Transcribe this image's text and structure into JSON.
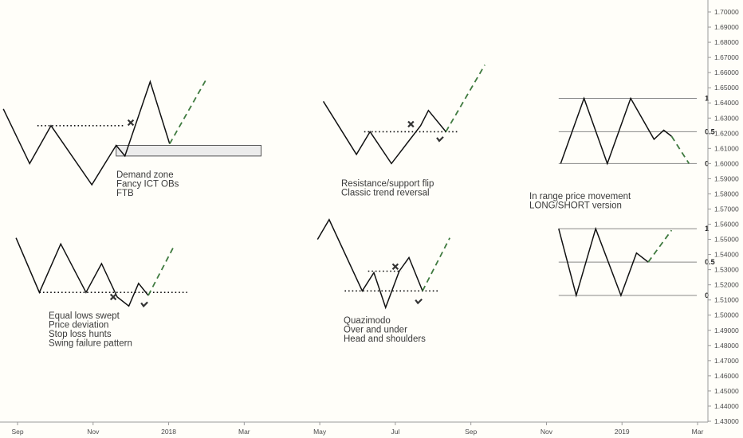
{
  "chart_data": {
    "type": "line",
    "colors": {
      "background": "#fffef9",
      "line": "#111111",
      "projection": "#3f7a3f",
      "level": "#888888",
      "zone_fill": "#ececec",
      "mark": "#333333"
    },
    "y_axis": {
      "range": [
        1.4275,
        1.7075
      ],
      "ticks": [
        "1.70000",
        "1.69000",
        "1.68000",
        "1.67000",
        "1.66000",
        "1.65000",
        "1.64000",
        "1.63000",
        "1.62000",
        "1.61000",
        "1.60000",
        "1.59000",
        "1.58000",
        "1.57000",
        "1.56000",
        "1.55000",
        "1.54000",
        "1.53000",
        "1.52000",
        "1.51000",
        "1.50000",
        "1.49000",
        "1.48000",
        "1.47000",
        "1.46000",
        "1.45000",
        "1.44000",
        "1.43000"
      ]
    },
    "x_axis": {
      "ticks": [
        "Sep",
        "Nov",
        "2018",
        "Mar",
        "May",
        "Jul",
        "Sep",
        "Nov",
        "2019",
        "Mar"
      ]
    },
    "patterns": [
      {
        "name": "demand-zone",
        "labels": [
          "Demand zone",
          "Fancy ICT OBs",
          "FTB"
        ],
        "path": [
          [
            0.05,
            1.636
          ],
          [
            1.4,
            1.6
          ],
          [
            2.5,
            1.625
          ],
          [
            4.6,
            1.586
          ],
          [
            5.85,
            1.612
          ],
          [
            6.3,
            1.605
          ],
          [
            7.6,
            1.654
          ],
          [
            8.6,
            1.613
          ]
        ],
        "projection": [
          [
            8.6,
            1.613
          ],
          [
            10.5,
            1.656
          ]
        ],
        "zone": [
          [
            5.85,
            1.605
          ],
          [
            13.3,
            1.612
          ]
        ],
        "dotted": {
          "x": [
            1.8,
            6.3
          ],
          "y": 1.625
        },
        "cross": [
          6.6,
          1.627
        ]
      },
      {
        "name": "sr-flip",
        "labels": [
          "Resistance/support flip",
          "Classic trend reversal"
        ],
        "path": [
          [
            16.5,
            1.641
          ],
          [
            18.2,
            1.606
          ],
          [
            18.9,
            1.621
          ],
          [
            20.0,
            1.6
          ],
          [
            21.5,
            1.625
          ],
          [
            21.9,
            1.635
          ],
          [
            22.8,
            1.621
          ]
        ],
        "projection": [
          [
            22.8,
            1.621
          ],
          [
            24.8,
            1.665
          ]
        ],
        "dotted": {
          "x": [
            18.6,
            23.4
          ],
          "y": 1.621
        },
        "cross": [
          21.0,
          1.626
        ],
        "check": [
          22.5,
          1.616
        ]
      },
      {
        "name": "range-top",
        "labels": [
          "In range price movement",
          "LONG/SHORT version"
        ],
        "path": [
          [
            28.7,
            1.6
          ],
          [
            29.9,
            1.643
          ],
          [
            31.1,
            1.6
          ],
          [
            32.3,
            1.643
          ],
          [
            33.5,
            1.616
          ],
          [
            34.0,
            1.622
          ],
          [
            34.4,
            1.618
          ]
        ],
        "projection": [
          [
            34.4,
            1.618
          ],
          [
            35.3,
            1.6
          ]
        ],
        "levels": [
          {
            "y": 1.643,
            "x": [
              28.6,
              35.7
            ],
            "label": "1"
          },
          {
            "y": 1.621,
            "x": [
              28.6,
              35.7
            ],
            "label": "0.5"
          },
          {
            "y": 1.6,
            "x": [
              28.6,
              35.7
            ],
            "label": "0"
          }
        ]
      },
      {
        "name": "equal-lows",
        "labels": [
          "Equal lows swept",
          "Price deviation",
          "Stop loss hunts",
          "Swing failure pattern"
        ],
        "path": [
          [
            0.7,
            1.551
          ],
          [
            1.9,
            1.515
          ],
          [
            3.0,
            1.547
          ],
          [
            4.3,
            1.515
          ],
          [
            5.1,
            1.534
          ],
          [
            5.9,
            1.512
          ],
          [
            6.5,
            1.506
          ],
          [
            7.0,
            1.521
          ],
          [
            7.5,
            1.513
          ]
        ],
        "projection": [
          [
            7.5,
            1.513
          ],
          [
            8.8,
            1.545
          ]
        ],
        "dotted": {
          "x": [
            1.9,
            9.5
          ],
          "y": 1.515
        },
        "cross": [
          5.7,
          1.512
        ],
        "check": [
          7.3,
          1.507
        ]
      },
      {
        "name": "quazimodo",
        "labels": [
          "Quazimodo",
          "Over and under",
          "Head and shoulders"
        ],
        "path": [
          [
            16.2,
            1.55
          ],
          [
            16.8,
            1.563
          ],
          [
            18.5,
            1.516
          ],
          [
            19.1,
            1.528
          ],
          [
            19.7,
            1.505
          ],
          [
            20.4,
            1.529
          ],
          [
            20.9,
            1.538
          ],
          [
            21.6,
            1.516
          ]
        ],
        "projection": [
          [
            21.6,
            1.516
          ],
          [
            23.0,
            1.551
          ]
        ],
        "dotted": [
          {
            "x": [
              18.8,
              20.5
            ],
            "y": 1.529
          },
          {
            "x": [
              17.6,
              22.5
            ],
            "y": 1.516
          }
        ],
        "cross": [
          20.2,
          1.532
        ],
        "check": [
          21.4,
          1.509
        ]
      },
      {
        "name": "range-bottom",
        "labels": [],
        "path": [
          [
            28.6,
            1.557
          ],
          [
            29.5,
            1.513
          ],
          [
            30.5,
            1.557
          ],
          [
            31.8,
            1.513
          ],
          [
            32.6,
            1.541
          ],
          [
            33.2,
            1.535
          ]
        ],
        "projection": [
          [
            33.2,
            1.535
          ],
          [
            34.4,
            1.556
          ]
        ],
        "levels": [
          {
            "y": 1.557,
            "x": [
              28.6,
              35.7
            ],
            "label": "1"
          },
          {
            "y": 1.535,
            "x": [
              28.6,
              35.7
            ],
            "label": "0.5"
          },
          {
            "y": 1.513,
            "x": [
              28.6,
              35.7
            ],
            "label": "0"
          }
        ]
      }
    ]
  }
}
